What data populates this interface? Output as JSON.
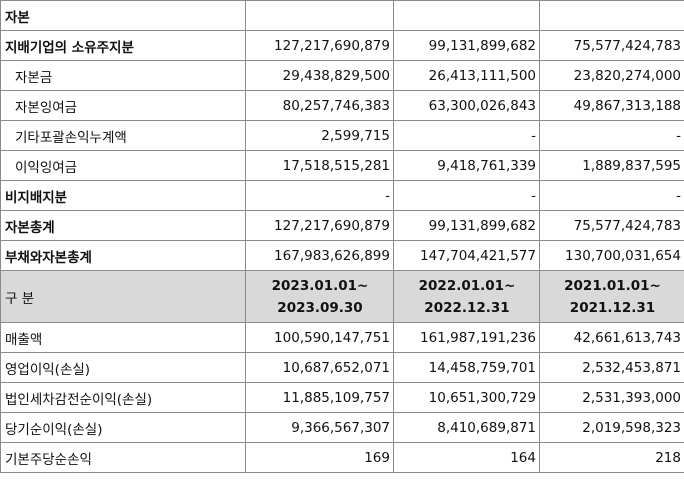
{
  "rows_top": [
    {
      "label": "자본",
      "v1": "",
      "v2": "",
      "v3": "",
      "bold": true,
      "indent": false
    },
    {
      "label": "지배기업의 소유주지분",
      "v1": "127,217,690,879",
      "v2": "99,131,899,682",
      "v3": "75,577,424,783",
      "bold": true,
      "indent": false
    },
    {
      "label": "자본금",
      "v1": "29,438,829,500",
      "v2": "26,413,111,500",
      "v3": "23,820,274,000",
      "bold": false,
      "indent": true
    },
    {
      "label": "자본잉여금",
      "v1": "80,257,746,383",
      "v2": "63,300,026,843",
      "v3": "49,867,313,188",
      "bold": false,
      "indent": true
    },
    {
      "label": "기타포괄손익누계액",
      "v1": "2,599,715",
      "v2": "-",
      "v3": "-",
      "bold": false,
      "indent": true
    },
    {
      "label": "이익잉여금",
      "v1": "17,518,515,281",
      "v2": "9,418,761,339",
      "v3": "1,889,837,595",
      "bold": false,
      "indent": true
    },
    {
      "label": "비지배지분",
      "v1": "-",
      "v2": "-",
      "v3": "-",
      "bold": true,
      "indent": false
    },
    {
      "label": "자본총계",
      "v1": "127,217,690,879",
      "v2": "99,131,899,682",
      "v3": "75,577,424,783",
      "bold": true,
      "indent": false
    },
    {
      "label": "부채와자본총계",
      "v1": "167,983,626,899",
      "v2": "147,704,421,577",
      "v3": "130,700,031,654",
      "bold": true,
      "indent": false
    }
  ],
  "header": {
    "gubun": "구 분",
    "periods": [
      {
        "start": "2023.01.01~",
        "end": "2023.09.30"
      },
      {
        "start": "2022.01.01~",
        "end": "2022.12.31"
      },
      {
        "start": "2021.01.01~",
        "end": "2021.12.31"
      }
    ]
  },
  "rows_bottom": [
    {
      "label": "매출액",
      "v1": "100,590,147,751",
      "v2": "161,987,191,236",
      "v3": "42,661,613,743"
    },
    {
      "label": "영업이익(손실)",
      "v1": "10,687,652,071",
      "v2": "14,458,759,701",
      "v3": "2,532,453,871"
    },
    {
      "label": "법인세차감전순이익(손실)",
      "v1": "11,885,109,757",
      "v2": "10,651,300,729",
      "v3": "2,531,393,000"
    },
    {
      "label": "당기순이익(손실)",
      "v1": "9,366,567,307",
      "v2": "8,410,689,871",
      "v3": "2,019,598,323"
    },
    {
      "label": "기본주당순손익",
      "v1": "169",
      "v2": "164",
      "v3": "218"
    }
  ]
}
